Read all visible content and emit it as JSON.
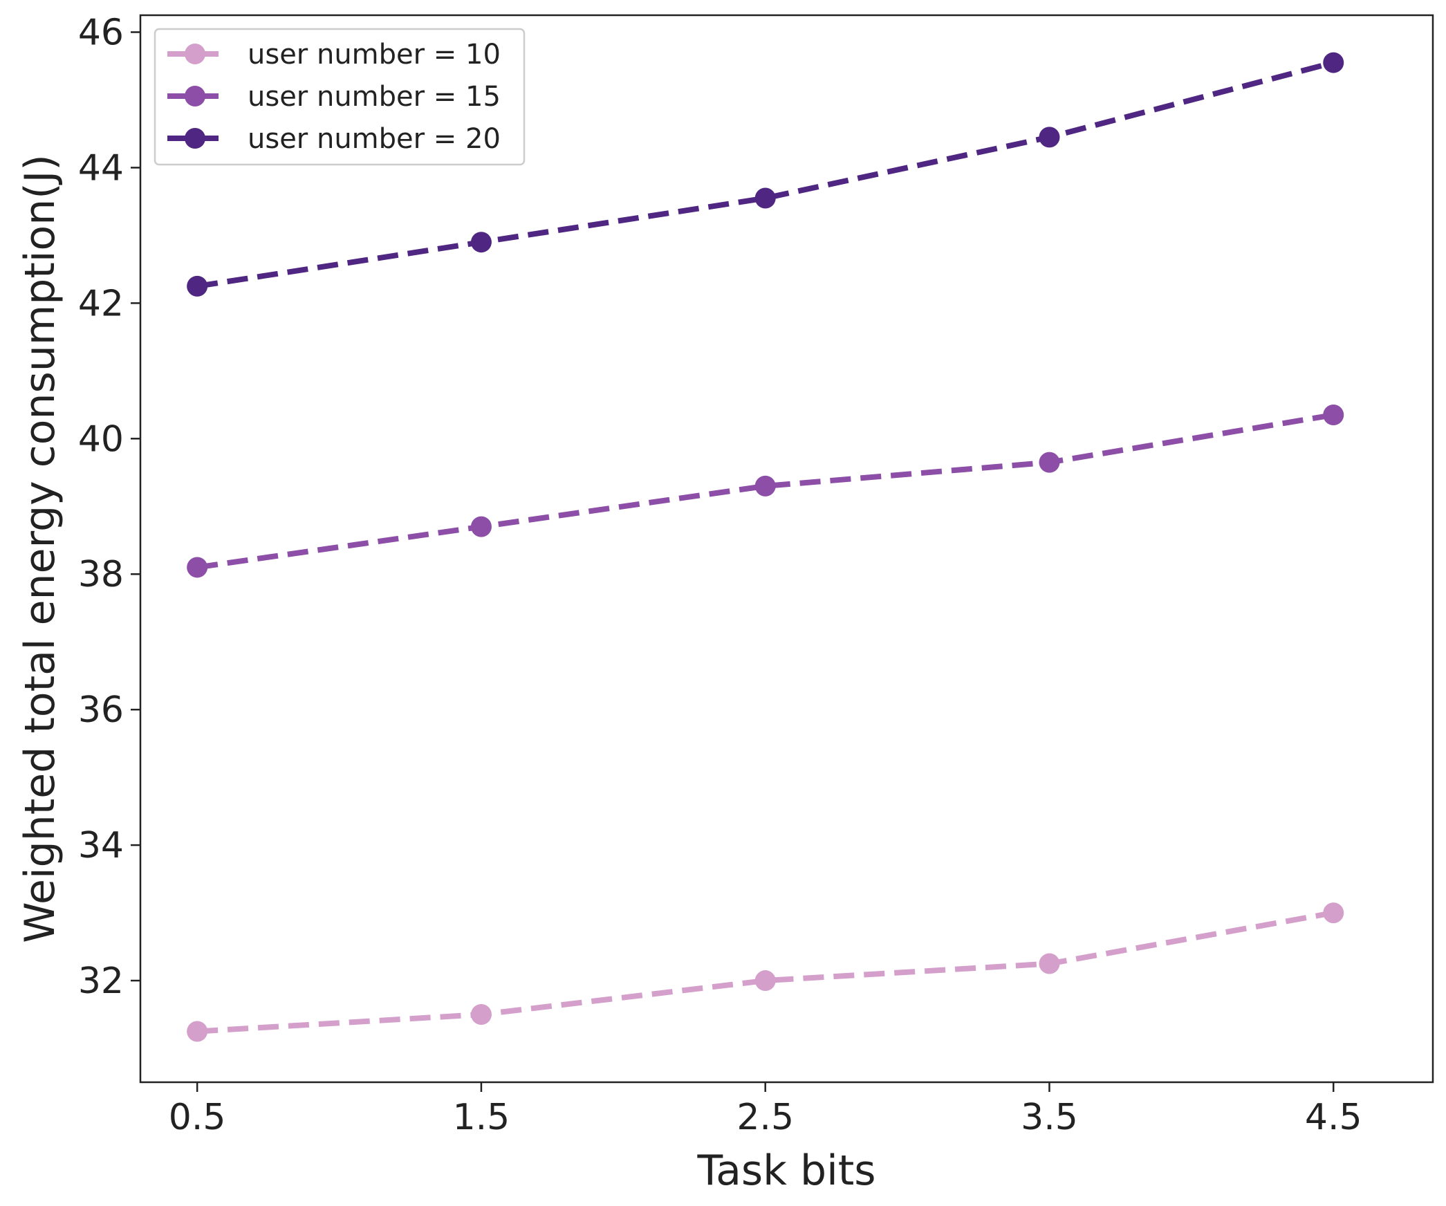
{
  "chart_data": {
    "type": "line",
    "title": "",
    "xlabel": "Task bits",
    "ylabel": "Weighted total energy consumption(J)",
    "x": [
      0.5,
      1.5,
      2.5,
      3.5,
      4.5
    ],
    "x_tick_labels": [
      "0.5",
      "1.5",
      "2.5",
      "3.5",
      "4.5"
    ],
    "y_ticks": [
      32,
      34,
      36,
      38,
      40,
      42,
      44,
      46
    ],
    "y_tick_labels": [
      "32",
      "34",
      "36",
      "38",
      "40",
      "42",
      "44",
      "46"
    ],
    "xlim": [
      0.3,
      4.85
    ],
    "ylim": [
      30.5,
      46.25
    ],
    "grid": false,
    "legend_position": "top-left",
    "line_style": "dashed",
    "marker": "circle",
    "series": [
      {
        "name": "user number = 10",
        "color": "#d4a0cb",
        "values": [
          31.25,
          31.5,
          32.0,
          32.25,
          33.0
        ]
      },
      {
        "name": "user number = 15",
        "color": "#8c4ea6",
        "values": [
          38.1,
          38.7,
          39.3,
          39.65,
          40.35
        ]
      },
      {
        "name": "user number = 20",
        "color": "#4f2682",
        "values": [
          42.25,
          42.9,
          43.55,
          44.45,
          45.55
        ]
      }
    ]
  }
}
